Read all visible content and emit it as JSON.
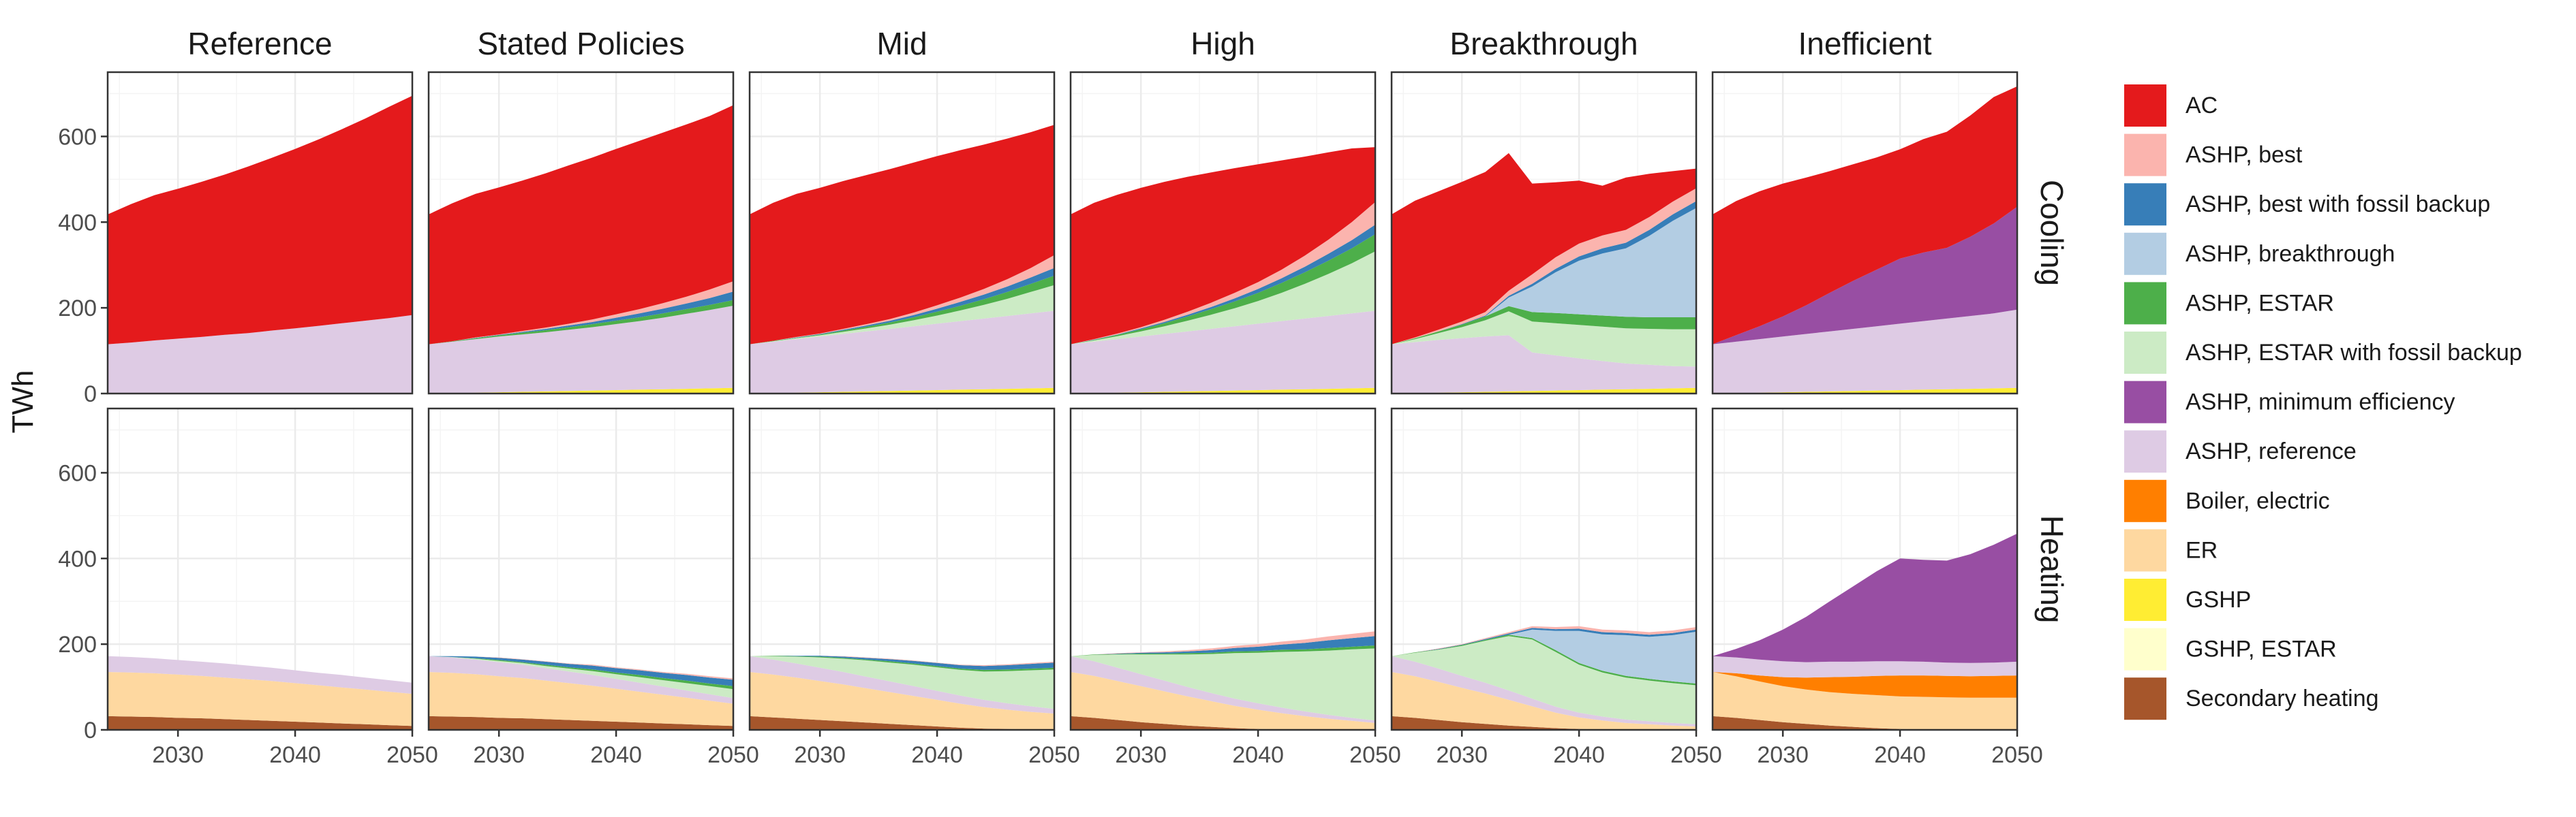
{
  "chart_data": {
    "type": "area",
    "stacked": true,
    "facets": {
      "columns": [
        "Reference",
        "Stated Policies",
        "Mid",
        "High",
        "Breakthrough",
        "Inefficient"
      ],
      "rows": [
        "Cooling",
        "Heating"
      ]
    },
    "ylabel": "TWh",
    "xlabel": "",
    "xlim": [
      2024,
      2050
    ],
    "ylim": [
      0,
      750
    ],
    "x_ticks": [
      2030,
      2040,
      2050
    ],
    "y_ticks": [
      0,
      200,
      400,
      600
    ],
    "grid": true,
    "legend_position": "right",
    "x": [
      2024,
      2026,
      2028,
      2030,
      2032,
      2034,
      2036,
      2038,
      2040,
      2042,
      2044,
      2046,
      2048,
      2050
    ],
    "series": [
      {
        "name": "Secondary heating",
        "color": "#A6562B"
      },
      {
        "name": "GSHP, ESTAR",
        "color": "#FFFFCC"
      },
      {
        "name": "GSHP",
        "color": "#FFED33"
      },
      {
        "name": "ER",
        "color": "#FED8A0"
      },
      {
        "name": "Boiler, electric",
        "color": "#FF7F00"
      },
      {
        "name": "ASHP, reference",
        "color": "#DECBE4"
      },
      {
        "name": "ASHP, minimum efficiency",
        "color": "#984EA3"
      },
      {
        "name": "ASHP, ESTAR with fossil backup",
        "color": "#CCEBC5"
      },
      {
        "name": "ASHP, ESTAR",
        "color": "#4DAF4A"
      },
      {
        "name": "ASHP, breakthrough",
        "color": "#B3CDE3"
      },
      {
        "name": "ASHP, best with fossil backup",
        "color": "#377EB8"
      },
      {
        "name": "ASHP, best",
        "color": "#FBB4AE"
      },
      {
        "name": "AC",
        "color": "#E41A1C"
      }
    ],
    "legend_order": [
      "AC",
      "ASHP, best",
      "ASHP, best with fossil backup",
      "ASHP, breakthrough",
      "ASHP, ESTAR",
      "ASHP, ESTAR with fossil backup",
      "ASHP, minimum efficiency",
      "ASHP, reference",
      "Boiler, electric",
      "ER",
      "GSHP",
      "GSHP, ESTAR",
      "Secondary heating"
    ],
    "panels": {
      "Reference|Cooling": {
        "GSHP": [
          0,
          0,
          0,
          0,
          0,
          0,
          0,
          0,
          0,
          0,
          0,
          0,
          0,
          0
        ],
        "ASHP, reference": [
          115,
          119,
          124,
          128,
          132,
          137,
          141,
          147,
          152,
          158,
          164,
          170,
          176,
          183
        ],
        "AC": [
          303,
          323,
          339,
          350,
          362,
          374,
          389,
          403,
          419,
          435,
          453,
          472,
          493,
          512
        ]
      },
      "Stated Policies|Cooling": {
        "GSHP": [
          0,
          1,
          2,
          3,
          4,
          5,
          6,
          7,
          8,
          9,
          10,
          11,
          12,
          13
        ],
        "ASHP, reference": [
          115,
          120,
          125,
          130,
          134,
          138,
          143,
          148,
          154,
          160,
          167,
          175,
          183,
          192
        ],
        "ASHP, ESTAR": [
          0,
          1,
          2,
          3,
          4,
          5,
          6,
          7,
          8,
          9,
          10,
          11,
          12,
          13
        ],
        "ASHP, best with fossil backup": [
          0,
          0,
          1,
          1,
          2,
          3,
          4,
          5,
          7,
          9,
          11,
          13,
          16,
          20
        ],
        "ASHP, best": [
          0,
          0,
          1,
          1,
          2,
          3,
          4,
          6,
          8,
          10,
          13,
          16,
          20,
          24
        ],
        "AC": [
          303,
          322,
          335,
          343,
          351,
          360,
          370,
          378,
          386,
          393,
          398,
          402,
          405,
          411
        ]
      },
      "Mid|Cooling": {
        "GSHP": [
          0,
          1,
          2,
          3,
          4,
          5,
          6,
          7,
          8,
          9,
          10,
          11,
          12,
          13
        ],
        "ASHP, reference": [
          115,
          120,
          125,
          130,
          135,
          140,
          145,
          150,
          155,
          160,
          165,
          170,
          175,
          180
        ],
        "ASHP, ESTAR with fossil backup": [
          0,
          1,
          2,
          3,
          5,
          7,
          10,
          14,
          19,
          25,
          32,
          40,
          50,
          60
        ],
        "ASHP, ESTAR": [
          0,
          1,
          1,
          2,
          3,
          4,
          5,
          7,
          9,
          11,
          13,
          16,
          19,
          22
        ],
        "ASHP, best with fossil backup": [
          0,
          0,
          1,
          1,
          2,
          3,
          4,
          5,
          7,
          9,
          11,
          13,
          15,
          18
        ],
        "ASHP, best": [
          0,
          0,
          1,
          1,
          2,
          3,
          4,
          6,
          8,
          10,
          13,
          17,
          22,
          30
        ],
        "AC": [
          303,
          322,
          334,
          340,
          345,
          348,
          350,
          350,
          348,
          344,
          337,
          328,
          317,
          304
        ]
      },
      "High|Cooling": {
        "GSHP": [
          0,
          1,
          2,
          3,
          4,
          5,
          6,
          7,
          8,
          9,
          10,
          11,
          12,
          13
        ],
        "ASHP, reference": [
          115,
          120,
          125,
          130,
          135,
          140,
          145,
          150,
          155,
          160,
          165,
          170,
          175,
          180
        ],
        "ASHP, ESTAR with fossil backup": [
          0,
          3,
          7,
          12,
          18,
          25,
          33,
          42,
          53,
          66,
          81,
          98,
          117,
          139
        ],
        "ASHP, ESTAR": [
          0,
          1,
          3,
          5,
          7,
          10,
          13,
          16,
          19,
          23,
          27,
          31,
          35,
          40
        ],
        "ASHP, best with fossil backup": [
          0,
          1,
          1,
          2,
          3,
          4,
          5,
          7,
          9,
          11,
          13,
          16,
          19,
          22
        ],
        "ASHP, best": [
          0,
          1,
          2,
          3,
          5,
          7,
          10,
          13,
          16,
          20,
          26,
          33,
          42,
          53
        ],
        "AC": [
          303,
          318,
          324,
          325,
          322,
          315,
          304,
          291,
          275,
          255,
          231,
          204,
          172,
          128
        ]
      },
      "Breakthrough|Cooling": {
        "GSHP": [
          0,
          1,
          2,
          3,
          4,
          5,
          6,
          7,
          8,
          9,
          10,
          11,
          12,
          13
        ],
        "ASHP, reference": [
          115,
          119,
          123,
          126,
          129,
          131,
          90,
          82,
          74,
          67,
          60,
          56,
          52,
          50
        ],
        "ASHP, ESTAR with fossil backup": [
          0,
          7,
          16,
          26,
          38,
          56,
          72,
          75,
          78,
          80,
          82,
          84,
          86,
          87
        ],
        "ASHP, ESTAR": [
          0,
          2,
          4,
          6,
          9,
          12,
          22,
          24,
          25,
          26,
          27,
          27,
          28,
          28
        ],
        "ASHP, breakthrough": [
          0,
          0,
          0,
          0,
          0,
          20,
          60,
          95,
          125,
          145,
          160,
          190,
          225,
          255
        ],
        "ASHP, best with fossil backup": [
          0,
          0,
          0,
          1,
          2,
          4,
          6,
          8,
          10,
          12,
          13,
          14,
          15,
          16
        ],
        "ASHP, best": [
          0,
          2,
          4,
          6,
          8,
          12,
          22,
          27,
          30,
          30,
          30,
          30,
          30,
          30
        ],
        "AC": [
          303,
          319,
          323,
          326,
          327,
          321,
          212,
          175,
          147,
          116,
          122,
          101,
          71,
          46
        ]
      },
      "Inefficient|Cooling": {
        "GSHP": [
          0,
          1,
          2,
          3,
          4,
          5,
          6,
          7,
          8,
          9,
          10,
          11,
          12,
          13
        ],
        "ASHP, reference": [
          115,
          120,
          125,
          130,
          135,
          140,
          145,
          150,
          155,
          160,
          165,
          170,
          175,
          183
        ],
        "ASHP, minimum efficiency": [
          0,
          15,
          30,
          47,
          67,
          90,
          112,
          132,
          152,
          160,
          165,
          185,
          210,
          240
        ],
        "AC": [
          303,
          313,
          315,
          310,
          298,
          284,
          272,
          262,
          255,
          265,
          271,
          283,
          295,
          281
        ]
      },
      "Reference|Heating": {
        "Secondary heating": [
          32,
          31,
          30,
          28,
          27,
          25,
          23,
          21,
          19,
          17,
          15,
          13,
          11,
          9
        ],
        "ER": [
          103,
          103,
          102,
          101,
          99,
          97,
          95,
          93,
          90,
          87,
          84,
          81,
          78,
          75
        ],
        "ASHP, reference": [
          37,
          36,
          35,
          34,
          33,
          33,
          32,
          31,
          30,
          29,
          29,
          28,
          27,
          26
        ]
      },
      "Stated Policies|Heating": {
        "Secondary heating": [
          32,
          31,
          30,
          28,
          27,
          25,
          23,
          21,
          19,
          17,
          15,
          13,
          11,
          9
        ],
        "ER": [
          103,
          102,
          100,
          97,
          94,
          90,
          86,
          82,
          77,
          72,
          67,
          62,
          57,
          52
        ],
        "ASHP, reference": [
          37,
          36,
          34,
          33,
          31,
          29,
          27,
          25,
          23,
          21,
          19,
          17,
          15,
          13
        ],
        "ASHP, ESTAR with fossil backup": [
          0,
          1,
          2,
          3,
          4,
          5,
          7,
          9,
          11,
          13,
          15,
          17,
          19,
          21
        ],
        "ASHP, ESTAR": [
          0,
          0,
          1,
          2,
          2,
          3,
          3,
          4,
          4,
          5,
          5,
          6,
          6,
          7
        ],
        "ASHP, best with fossil backup": [
          0,
          2,
          4,
          5,
          6,
          7,
          8,
          9,
          10,
          11,
          12,
          13,
          14,
          15
        ],
        "ASHP, best": [
          0,
          0,
          0,
          1,
          1,
          1,
          1,
          2,
          2,
          2,
          2,
          3,
          3,
          3
        ]
      },
      "Mid|Heating": {
        "Secondary heating": [
          32,
          29,
          26,
          23,
          20,
          17,
          14,
          11,
          8,
          5,
          3,
          2,
          1,
          0
        ],
        "ER": [
          103,
          100,
          96,
          91,
          86,
          80,
          74,
          68,
          62,
          56,
          50,
          45,
          41,
          38
        ],
        "ASHP, reference": [
          37,
          35,
          33,
          31,
          29,
          27,
          25,
          23,
          21,
          19,
          17,
          15,
          13,
          11
        ],
        "ASHP, ESTAR with fossil backup": [
          0,
          8,
          16,
          24,
          31,
          38,
          44,
          50,
          55,
          60,
          66,
          75,
          84,
          92
        ],
        "ASHP, ESTAR": [
          0,
          1,
          1,
          2,
          2,
          2,
          3,
          3,
          3,
          3,
          4,
          4,
          4,
          4
        ],
        "ASHP, best with fossil backup": [
          0,
          0,
          1,
          2,
          3,
          4,
          5,
          6,
          7,
          8,
          9,
          10,
          11,
          12
        ],
        "ASHP, best": [
          0,
          0,
          0,
          0,
          1,
          1,
          1,
          1,
          1,
          1,
          2,
          2,
          2,
          2
        ]
      },
      "High|Heating": {
        "Secondary heating": [
          32,
          28,
          23,
          18,
          14,
          10,
          7,
          4,
          2,
          1,
          0,
          0,
          0,
          0
        ],
        "ER": [
          103,
          98,
          91,
          84,
          76,
          68,
          60,
          52,
          45,
          38,
          32,
          26,
          21,
          16
        ],
        "ASHP, reference": [
          37,
          34,
          31,
          28,
          25,
          22,
          19,
          17,
          15,
          13,
          11,
          9,
          7,
          6
        ],
        "ASHP, ESTAR with fossil backup": [
          0,
          15,
          31,
          46,
          61,
          76,
          91,
          106,
          118,
          130,
          140,
          150,
          160,
          168
        ],
        "ASHP, ESTAR": [
          0,
          1,
          1,
          2,
          2,
          3,
          3,
          4,
          4,
          5,
          5,
          6,
          6,
          7
        ],
        "ASHP, best with fossil backup": [
          0,
          0,
          1,
          2,
          3,
          4,
          6,
          8,
          10,
          12,
          15,
          18,
          20,
          22
        ],
        "ASHP, best": [
          0,
          0,
          1,
          1,
          2,
          3,
          4,
          5,
          6,
          7,
          8,
          9,
          10,
          11
        ]
      },
      "Breakthrough|Heating": {
        "Secondary heating": [
          32,
          28,
          23,
          18,
          14,
          10,
          7,
          4,
          2,
          1,
          0,
          0,
          0,
          0
        ],
        "ER": [
          103,
          97,
          89,
          80,
          71,
          60,
          48,
          36,
          27,
          21,
          16,
          13,
          10,
          8
        ],
        "ASHP, reference": [
          37,
          34,
          31,
          28,
          25,
          22,
          18,
          14,
          11,
          9,
          8,
          7,
          6,
          5
        ],
        "ASHP, ESTAR with fossil backup": [
          0,
          21,
          44,
          70,
          98,
          127,
          138,
          128,
          112,
          103,
          98,
          95,
          93,
          91
        ],
        "ASHP, ESTAR": [
          0,
          1,
          1,
          2,
          2,
          3,
          3,
          4,
          4,
          4,
          4,
          4,
          4,
          4
        ],
        "ASHP, breakthrough": [
          0,
          0,
          0,
          0,
          0,
          0,
          20,
          45,
          75,
          85,
          95,
          98,
          108,
          121
        ],
        "ASHP, best with fossil backup": [
          0,
          0,
          1,
          1,
          2,
          3,
          4,
          4,
          5,
          5,
          5,
          5,
          5,
          5
        ],
        "ASHP, best": [
          0,
          0,
          1,
          1,
          2,
          3,
          4,
          5,
          6,
          6,
          6,
          6,
          6,
          6
        ]
      },
      "Inefficient|Heating": {
        "Secondary heating": [
          32,
          28,
          23,
          18,
          14,
          10,
          7,
          4,
          2,
          1,
          0,
          0,
          0,
          0
        ],
        "ER": [
          103,
          97,
          90,
          84,
          80,
          78,
          77,
          77,
          76,
          76,
          76,
          75,
          75,
          75
        ],
        "Boiler, electric": [
          0,
          7,
          14,
          21,
          28,
          35,
          40,
          45,
          49,
          50,
          50,
          50,
          51,
          52
        ],
        "ASHP, reference": [
          37,
          37,
          37,
          37,
          36,
          36,
          35,
          34,
          33,
          32,
          31,
          31,
          31,
          32
        ],
        "ASHP, minimum efficiency": [
          0,
          20,
          45,
          74,
          106,
          141,
          176,
          210,
          240,
          238,
          238,
          254,
          275,
          299
        ]
      }
    }
  }
}
